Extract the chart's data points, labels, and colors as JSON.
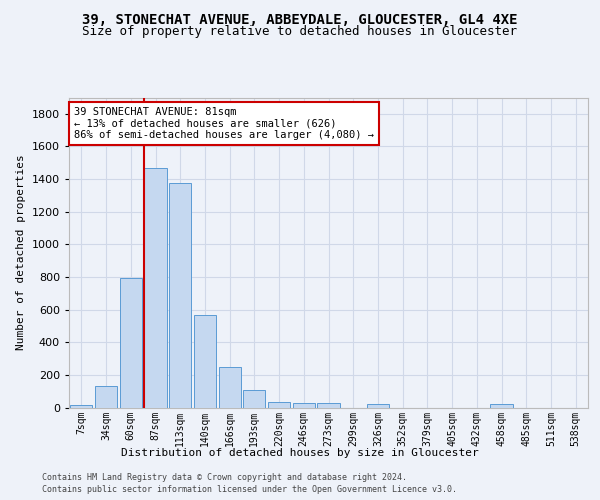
{
  "title1": "39, STONECHAT AVENUE, ABBEYDALE, GLOUCESTER, GL4 4XE",
  "title2": "Size of property relative to detached houses in Gloucester",
  "xlabel": "Distribution of detached houses by size in Gloucester",
  "ylabel": "Number of detached properties",
  "bar_color": "#c5d8f0",
  "bar_edge_color": "#5b9bd5",
  "categories": [
    "7sqm",
    "34sqm",
    "60sqm",
    "87sqm",
    "113sqm",
    "140sqm",
    "166sqm",
    "193sqm",
    "220sqm",
    "246sqm",
    "273sqm",
    "299sqm",
    "326sqm",
    "352sqm",
    "379sqm",
    "405sqm",
    "432sqm",
    "458sqm",
    "485sqm",
    "511sqm",
    "538sqm"
  ],
  "values": [
    15,
    130,
    795,
    1470,
    1375,
    570,
    250,
    110,
    35,
    30,
    30,
    0,
    20,
    0,
    0,
    0,
    0,
    20,
    0,
    0,
    0
  ],
  "ylim": [
    0,
    1900
  ],
  "yticks": [
    0,
    200,
    400,
    600,
    800,
    1000,
    1200,
    1400,
    1600,
    1800
  ],
  "marker_label_line1": "39 STONECHAT AVENUE: 81sqm",
  "marker_label_line2": "← 13% of detached houses are smaller (626)",
  "marker_label_line3": "86% of semi-detached houses are larger (4,080) →",
  "marker_bar_index": 3,
  "footer1": "Contains HM Land Registry data © Crown copyright and database right 2024.",
  "footer2": "Contains public sector information licensed under the Open Government Licence v3.0.",
  "bg_color": "#eef2f9",
  "grid_color": "#d0d8e8",
  "annotation_box_color": "#cc0000",
  "title1_fontsize": 10,
  "title2_fontsize": 9,
  "xlabel_fontsize": 8,
  "ylabel_fontsize": 8,
  "tick_fontsize": 7,
  "footer_fontsize": 6,
  "ann_fontsize": 7.5
}
